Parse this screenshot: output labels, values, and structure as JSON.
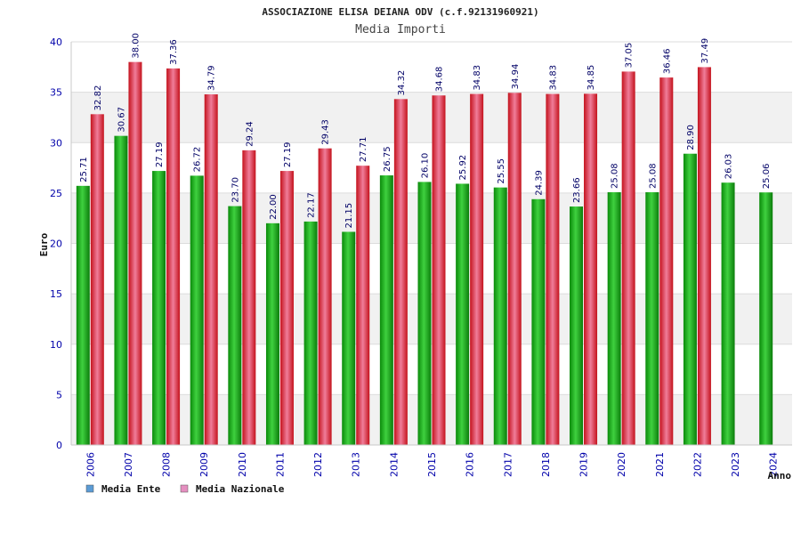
{
  "chart_data": {
    "type": "bar",
    "title": "ASSOCIAZIONE ELISA DEIANA ODV (c.f.92131960921)",
    "subtitle": "Media Importi",
    "xlabel": "Anno",
    "ylabel": "Euro",
    "ylim": [
      0,
      40
    ],
    "yticks": [
      "0",
      "5",
      "10",
      "15",
      "20",
      "25",
      "30",
      "35",
      "40"
    ],
    "grid": true,
    "legend_position": "bottom-left",
    "categories": [
      "2006",
      "2007",
      "2008",
      "2009",
      "2010",
      "2011",
      "2012",
      "2013",
      "2014",
      "2015",
      "2016",
      "2017",
      "2018",
      "2019",
      "2020",
      "2021",
      "2022",
      "2023",
      "2024"
    ],
    "series": [
      {
        "name": "Media Ente",
        "color": "#1dbb1d",
        "legend_color": "#5b9bd5",
        "values": [
          25.71,
          30.67,
          27.19,
          26.72,
          23.7,
          22.0,
          22.17,
          21.15,
          26.75,
          26.1,
          25.92,
          25.55,
          24.39,
          23.66,
          25.08,
          25.08,
          28.9,
          26.03,
          25.06
        ],
        "labels": [
          "25.71",
          "30.67",
          "27.19",
          "26.72",
          "23.70",
          "22.00",
          "22.17",
          "21.15",
          "26.75",
          "26.10",
          "25.92",
          "25.55",
          "24.39",
          "23.66",
          "25.08",
          "25.08",
          "28.90",
          "26.03",
          "25.06"
        ]
      },
      {
        "name": "Media Nazionale",
        "color": "#e8202a",
        "legend_color": "#e58fc0",
        "values": [
          32.82,
          38.0,
          37.36,
          34.79,
          29.24,
          27.19,
          29.43,
          27.71,
          34.32,
          34.68,
          34.83,
          34.94,
          34.83,
          34.85,
          37.05,
          36.46,
          37.49,
          null,
          null
        ],
        "labels": [
          "32.82",
          "38.00",
          "37.36",
          "34.79",
          "29.24",
          "27.19",
          "29.43",
          "27.71",
          "34.32",
          "34.68",
          "34.83",
          "34.94",
          "34.83",
          "34.85",
          "37.05",
          "36.46",
          "37.49",
          "",
          ""
        ]
      }
    ]
  }
}
